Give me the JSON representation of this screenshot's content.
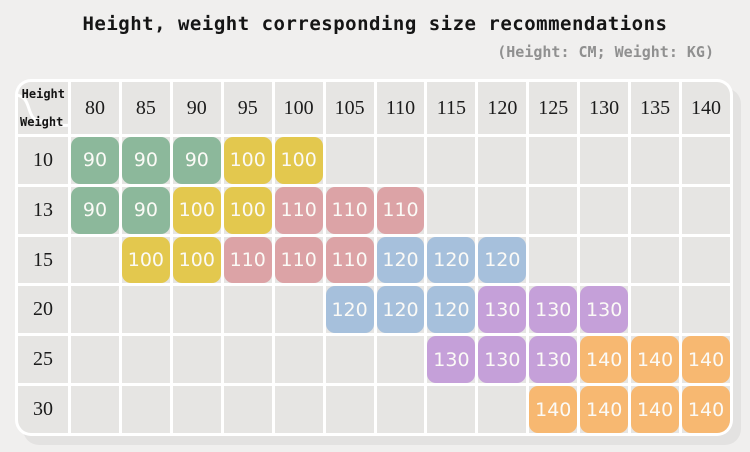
{
  "header": {
    "title": "Height, weight corresponding size recommendations",
    "units_note": "(Height: CM; Weight: KG)"
  },
  "corner": {
    "top_label": "Height",
    "bottom_label": "Weight"
  },
  "chart_data": {
    "type": "table",
    "title": "Height, weight corresponding size recommendations",
    "subtitle": "(Height: CM; Weight: KG)",
    "x_axis_label": "Height",
    "y_axis_label": "Weight",
    "x_unit": "CM",
    "y_unit": "KG",
    "columns": [
      80,
      85,
      90,
      95,
      100,
      105,
      110,
      115,
      120,
      125,
      130,
      135,
      140
    ],
    "rows": [
      10,
      13,
      15,
      20,
      25,
      30
    ],
    "matrix": [
      [
        90,
        90,
        90,
        100,
        100,
        null,
        null,
        null,
        null,
        null,
        null,
        null,
        null
      ],
      [
        90,
        90,
        100,
        100,
        110,
        110,
        110,
        null,
        null,
        null,
        null,
        null,
        null
      ],
      [
        null,
        100,
        100,
        110,
        110,
        110,
        120,
        120,
        120,
        null,
        null,
        null,
        null
      ],
      [
        null,
        null,
        null,
        null,
        null,
        120,
        120,
        120,
        130,
        130,
        130,
        null,
        null
      ],
      [
        null,
        null,
        null,
        null,
        null,
        null,
        null,
        130,
        130,
        130,
        140,
        140,
        140
      ],
      [
        null,
        null,
        null,
        null,
        null,
        null,
        null,
        null,
        null,
        140,
        140,
        140,
        140
      ]
    ],
    "size_colors": {
      "90": "#8cb89b",
      "100": "#e3c84e",
      "110": "#dca3a6",
      "120": "#a6c0dc",
      "130": "#c5a0d9",
      "140": "#f7b871"
    },
    "layout": {
      "page_background": "#f0efee",
      "cell_background": "#e6e5e3",
      "gridline_color": "#ffffff",
      "value_text_color": "#fbfaf6"
    }
  }
}
